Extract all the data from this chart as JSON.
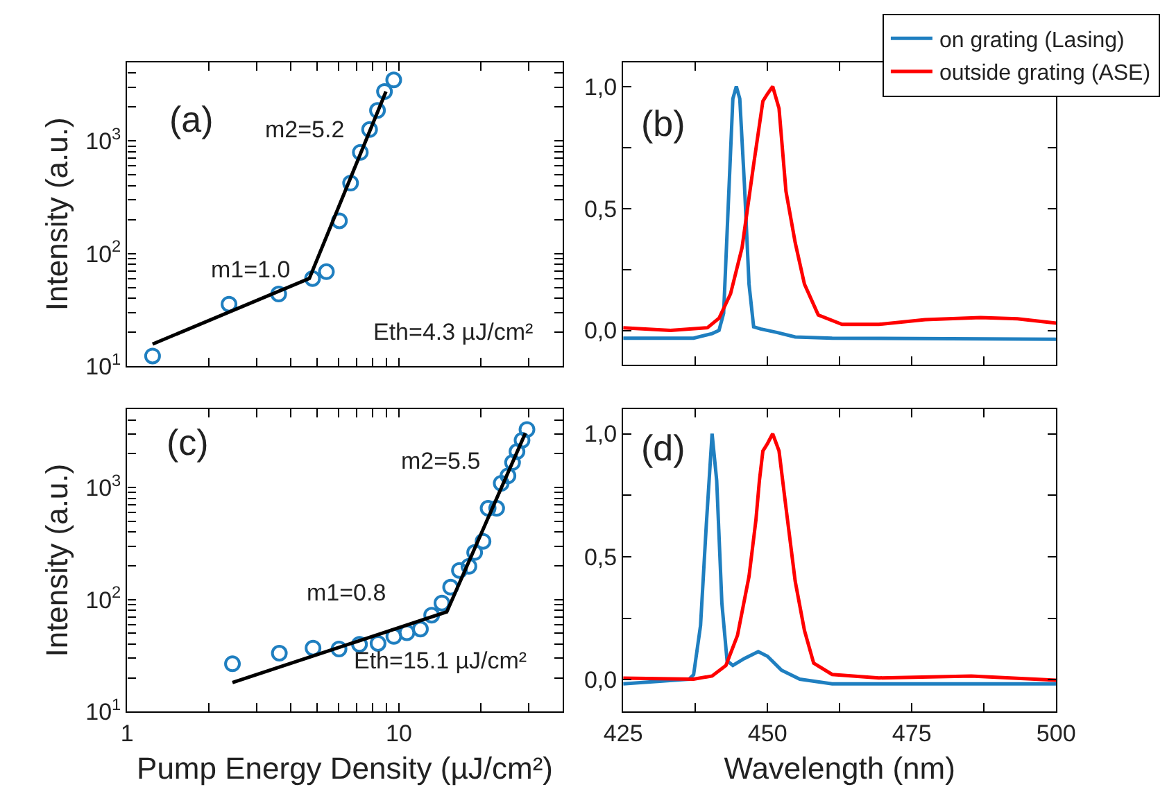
{
  "chart_data": [
    {
      "type": "scatter",
      "ylabel": "Intensity (a.u.)",
      "log": "xy",
      "tick_labels": "y",
      "xlim": [
        1,
        40
      ],
      "xticks": [
        1,
        {
          "value": 2,
          "label": null
        },
        {
          "value": 3,
          "label": null
        },
        {
          "value": 4,
          "label": null
        },
        {
          "value": 5,
          "label": null
        },
        {
          "value": 6,
          "label": null
        },
        {
          "value": 7,
          "label": null
        },
        {
          "value": 8,
          "label": null
        },
        {
          "value": 9,
          "label": null
        },
        10,
        {
          "value": 20,
          "label": null
        },
        {
          "value": 30,
          "label": null
        },
        {
          "value": 40,
          "label": null
        }
      ],
      "ylim": [
        10,
        5000
      ],
      "yticks": [
        {
          "value": 10,
          "label": "10$^{1}$"
        },
        {
          "value": 20,
          "label": null
        },
        {
          "value": 30,
          "label": null
        },
        {
          "value": 40,
          "label": null
        },
        {
          "value": 50,
          "label": null
        },
        {
          "value": 60,
          "label": null
        },
        {
          "value": 70,
          "label": null
        },
        {
          "value": 80,
          "label": null
        },
        {
          "value": 90,
          "label": null
        },
        {
          "value": 100,
          "label": "10$^{2}$"
        },
        {
          "value": 200,
          "label": null
        },
        {
          "value": 300,
          "label": null
        },
        {
          "value": 400,
          "label": null
        },
        {
          "value": 500,
          "label": null
        },
        {
          "value": 600,
          "label": null
        },
        {
          "value": 700,
          "label": null
        },
        {
          "value": 800,
          "label": null
        },
        {
          "value": 900,
          "label": null
        },
        {
          "value": 1000,
          "label": "10$^{3}$"
        },
        {
          "value": 2000,
          "label": null
        },
        {
          "value": 3000,
          "label": null
        },
        {
          "value": 4000,
          "label": null
        },
        {
          "value": 5000,
          "label": null
        }
      ],
      "annotations": [
        "(a)",
        "m2=5.2",
        "m1=1.0",
        "Eth=4.3 µJ/cm²"
      ],
      "series": [
        {
          "type": "scatter",
          "marker": "circle",
          "color": "#1f7fc0",
          "x": [
            1.24,
            2.37,
            3.61,
            4.81,
            5.41,
            6.04,
            6.64,
            7.21,
            7.8,
            8.34,
            8.85,
            9.57
          ],
          "values": [
            12.3,
            35.5,
            43.7,
            60,
            69,
            195,
            422,
            790,
            1260,
            1860,
            2740,
            3470
          ]
        },
        {
          "type": "line",
          "marker": "none",
          "color": "#000000",
          "x": [
            1.24,
            4.68,
            8.96
          ],
          "values": [
            15.7,
            60,
            2740
          ]
        }
      ]
    },
    {
      "type": "line",
      "tick_labels": "y",
      "legend": "top right",
      "xlim": [
        425,
        500
      ],
      "xticks": [
        425,
        {
          "value": 437.5,
          "label": null
        },
        450,
        {
          "value": 462.5,
          "label": null
        },
        475,
        {
          "value": 487.5,
          "label": null
        },
        500
      ],
      "ylim": [
        -0.14,
        1.1
      ],
      "yticks": [
        {
          "value": 0,
          "label": "0,0"
        },
        {
          "value": 0.25,
          "label": null
        },
        {
          "value": 0.5,
          "label": "0,5"
        },
        {
          "value": 0.75,
          "label": null
        },
        {
          "value": 1,
          "label": "1,0"
        }
      ],
      "annotations": [
        "(b)"
      ],
      "series": [
        {
          "name": "on grating (Lasing)",
          "color": "#1f7fc0",
          "x": [
            425,
            437.2,
            440.4,
            441.6,
            442.4,
            443.2,
            444.0,
            444.6,
            445.2,
            446.0,
            446.8,
            447.6,
            448.8,
            451.6,
            454.8,
            461.2,
            500
          ],
          "values": [
            -0.032,
            -0.032,
            -0.013,
            0,
            0.07,
            0.51,
            0.95,
            1.0,
            0.95,
            0.6,
            0.19,
            0.015,
            0.006,
            -0.008,
            -0.027,
            -0.032,
            -0.036
          ]
        },
        {
          "name": "outside grating (ASE)",
          "color": "#ff0000",
          "x": [
            425,
            433.2,
            439.6,
            441.6,
            443.6,
            445.6,
            447.6,
            448.4,
            449.2,
            450.0,
            450.9,
            452.0,
            453.2,
            454.8,
            456.4,
            458.8,
            462.9,
            469.3,
            477.3,
            486.9,
            493.3,
            500
          ],
          "values": [
            0.011,
            0,
            0.011,
            0.05,
            0.15,
            0.34,
            0.68,
            0.81,
            0.94,
            0.97,
            1.0,
            0.91,
            0.57,
            0.36,
            0.19,
            0.063,
            0.025,
            0.025,
            0.044,
            0.053,
            0.048,
            0.03
          ]
        }
      ]
    },
    {
      "type": "scatter",
      "ylabel": "Intensity (a.u.)",
      "xlabel": "Pump Energy Density (µJ/cm²)",
      "log": "xy",
      "xlim": [
        1,
        40
      ],
      "xticks": [
        1,
        {
          "value": 2,
          "label": null
        },
        {
          "value": 3,
          "label": null
        },
        {
          "value": 4,
          "label": null
        },
        {
          "value": 5,
          "label": null
        },
        {
          "value": 6,
          "label": null
        },
        {
          "value": 7,
          "label": null
        },
        {
          "value": 8,
          "label": null
        },
        {
          "value": 9,
          "label": null
        },
        10,
        {
          "value": 20,
          "label": null
        },
        {
          "value": 30,
          "label": null
        },
        {
          "value": 40,
          "label": null
        }
      ],
      "ylim": [
        10,
        5000
      ],
      "yticks": [
        {
          "value": 10,
          "label": "10$^{1}$"
        },
        {
          "value": 20,
          "label": null
        },
        {
          "value": 30,
          "label": null
        },
        {
          "value": 40,
          "label": null
        },
        {
          "value": 50,
          "label": null
        },
        {
          "value": 60,
          "label": null
        },
        {
          "value": 70,
          "label": null
        },
        {
          "value": 80,
          "label": null
        },
        {
          "value": 90,
          "label": null
        },
        {
          "value": 100,
          "label": "10$^{2}$"
        },
        {
          "value": 200,
          "label": null
        },
        {
          "value": 300,
          "label": null
        },
        {
          "value": 400,
          "label": null
        },
        {
          "value": 500,
          "label": null
        },
        {
          "value": 600,
          "label": null
        },
        {
          "value": 700,
          "label": null
        },
        {
          "value": 800,
          "label": null
        },
        {
          "value": 900,
          "label": null
        },
        {
          "value": 1000,
          "label": "10$^{3}$"
        },
        {
          "value": 2000,
          "label": null
        },
        {
          "value": 3000,
          "label": null
        },
        {
          "value": 4000,
          "label": null
        },
        {
          "value": 5000,
          "label": null
        }
      ],
      "annotations": [
        "(c)",
        "m2=5.5",
        "m1=0.8",
        "Eth=15.1 µJ/cm²"
      ],
      "series": [
        {
          "type": "scatter",
          "marker": "circle",
          "color": "#1f7fc0",
          "x": [
            2.44,
            3.63,
            4.83,
            6.02,
            7.16,
            8.38,
            9.58,
            10.7,
            12.0,
            13.2,
            14.4,
            15.5,
            16.7,
            18.1,
            19.0,
            20.4,
            21.3,
            22.9,
            23.8,
            25.2,
            26.2,
            27.2,
            28.4,
            29.6
          ],
          "values": [
            26.7,
            33.2,
            36.9,
            36.2,
            39.8,
            40.6,
            46.9,
            50.6,
            54.6,
            72.6,
            93,
            129,
            182,
            198,
            263,
            331,
            652,
            652,
            1090,
            1270,
            1670,
            2090,
            2640,
            3290
          ]
        },
        {
          "type": "line",
          "marker": "none",
          "color": "#000000",
          "x": [
            2.44,
            15.0,
            29.2
          ],
          "values": [
            18.2,
            77.6,
            3050
          ]
        }
      ]
    },
    {
      "type": "line",
      "xlabel": "Wavelength (nm)",
      "xlim": [
        425,
        500
      ],
      "xticks": [
        425,
        {
          "value": 437.5,
          "label": null
        },
        450,
        {
          "value": 462.5,
          "label": null
        },
        475,
        {
          "value": 487.5,
          "label": null
        },
        500
      ],
      "ylim": [
        -0.13,
        1.1
      ],
      "yticks": [
        {
          "value": 0,
          "label": "0,0"
        },
        {
          "value": 0.25,
          "label": null
        },
        {
          "value": 0.5,
          "label": "0,5"
        },
        {
          "value": 0.75,
          "label": null
        },
        {
          "value": 1,
          "label": "1,0"
        }
      ],
      "annotations": [
        "(d)"
      ],
      "series": [
        {
          "color": "#1f7fc0",
          "x": [
            425,
            436.4,
            437.2,
            438.4,
            439.4,
            440.4,
            441.2,
            442.1,
            443.0,
            444.0,
            446.0,
            448.4,
            450.0,
            452.4,
            455.6,
            461.2,
            500
          ],
          "values": [
            -0.017,
            0.002,
            0.02,
            0.22,
            0.63,
            1.0,
            0.81,
            0.31,
            0.077,
            0.058,
            0.086,
            0.114,
            0.095,
            0.039,
            0.002,
            -0.017,
            -0.017
          ]
        },
        {
          "color": "#ff0000",
          "x": [
            425,
            437.2,
            440.4,
            442.8,
            444.8,
            446.8,
            448.0,
            448.6,
            449.2,
            450.0,
            450.9,
            452.0,
            453.2,
            454.8,
            456.4,
            458.0,
            461.2,
            469.3,
            485.3,
            500
          ],
          "values": [
            0.006,
            0.002,
            0.015,
            0.058,
            0.18,
            0.42,
            0.65,
            0.81,
            0.93,
            0.96,
            1.0,
            0.93,
            0.7,
            0.4,
            0.2,
            0.067,
            0.021,
            0.007,
            0.015,
            -0.002
          ]
        }
      ]
    }
  ]
}
